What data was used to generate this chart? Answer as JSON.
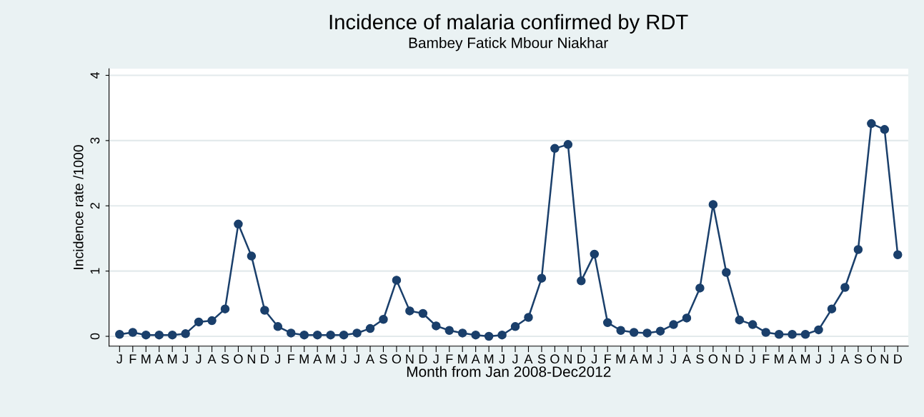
{
  "chart_data": {
    "type": "line",
    "title": "Incidence of malaria confirmed by RDT",
    "subtitle": "Bambey Fatick Mbour Niakhar",
    "xlabel": "Month from Jan 2008-Dec2012",
    "ylabel": "Incidence rate /1000",
    "categories": [
      "J",
      "F",
      "M",
      "A",
      "M",
      "J",
      "J",
      "A",
      "S",
      "O",
      "N",
      "D",
      "J",
      "F",
      "M",
      "A",
      "M",
      "J",
      "J",
      "A",
      "S",
      "O",
      "N",
      "D",
      "J",
      "F",
      "M",
      "A",
      "M",
      "J",
      "J",
      "A",
      "S",
      "O",
      "N",
      "D",
      "J",
      "F",
      "M",
      "A",
      "M",
      "J",
      "J",
      "A",
      "S",
      "O",
      "N",
      "D",
      "J",
      "F",
      "M",
      "A",
      "M",
      "J",
      "J",
      "A",
      "S",
      "O",
      "N",
      "D"
    ],
    "series": [
      {
        "color": "#1a3f6b",
        "values": [
          0.03,
          0.06,
          0.02,
          0.02,
          0.02,
          0.04,
          0.22,
          0.24,
          0.42,
          1.72,
          1.23,
          0.4,
          0.15,
          0.05,
          0.02,
          0.02,
          0.02,
          0.02,
          0.05,
          0.12,
          0.26,
          0.86,
          0.39,
          0.35,
          0.16,
          0.09,
          0.05,
          0.02,
          0.0,
          0.02,
          0.15,
          0.29,
          0.89,
          2.88,
          2.94,
          0.85,
          1.26,
          0.21,
          0.09,
          0.06,
          0.05,
          0.08,
          0.18,
          0.28,
          0.74,
          2.02,
          0.98,
          0.25,
          0.18,
          0.06,
          0.03,
          0.03,
          0.03,
          0.1,
          0.42,
          0.75,
          1.33,
          3.26,
          3.17,
          1.25
        ]
      }
    ],
    "ylim": [
      -0.15,
      4.1
    ],
    "yticks": [
      0,
      1,
      2,
      3,
      4
    ],
    "grid": "y",
    "marker": "circle",
    "line_style": "solid"
  }
}
